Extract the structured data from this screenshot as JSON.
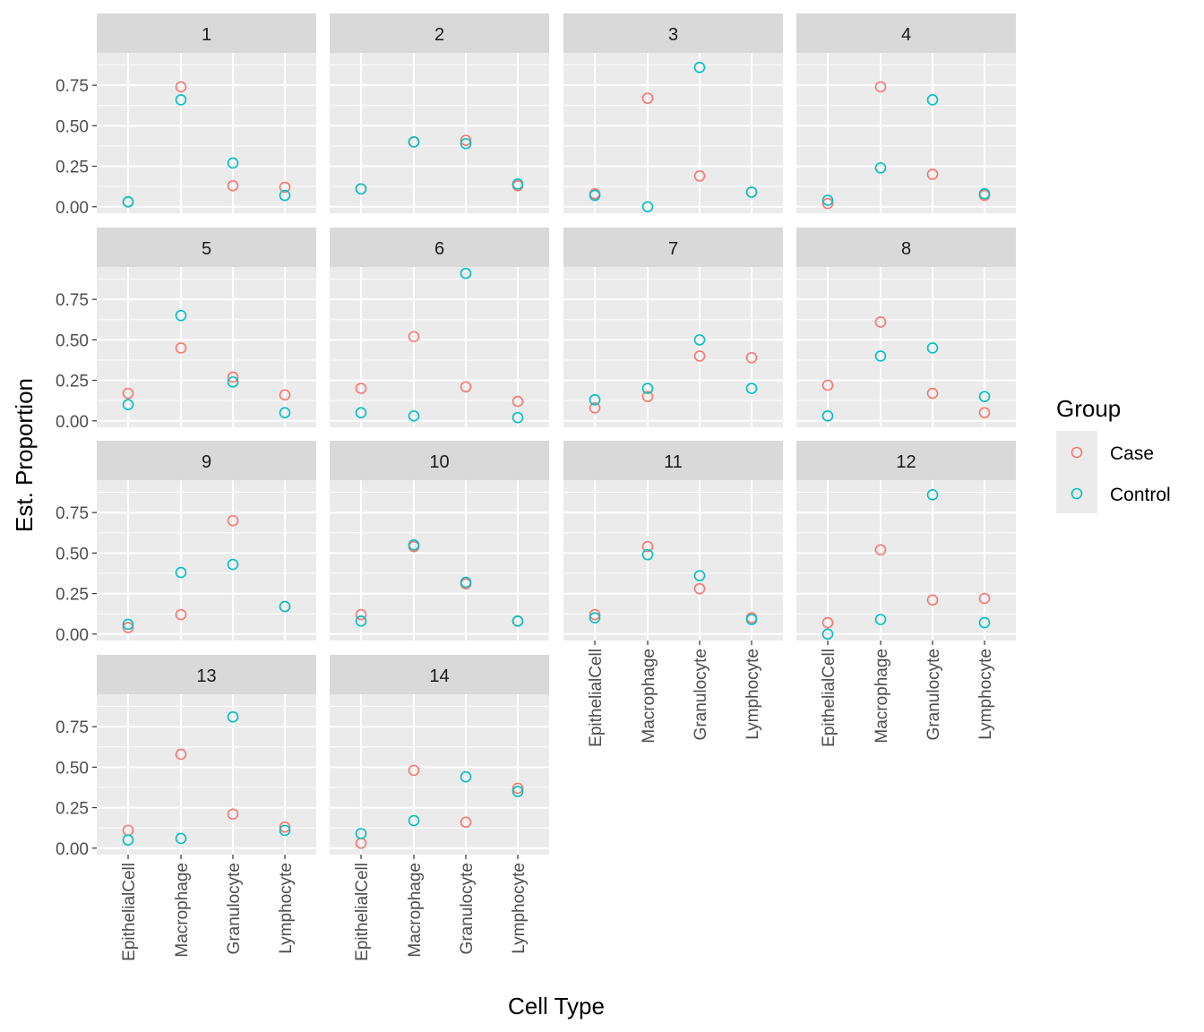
{
  "chart_data": {
    "type": "scatter",
    "facet_layout": "4 columns, 4 rows",
    "xlabel": "Cell Type",
    "ylabel": "Est. Proportion",
    "categories": [
      "EpithelialCell",
      "Macrophage",
      "Granulocyte",
      "Lymphocyte"
    ],
    "y_ticks": [
      "0.00",
      "0.25",
      "0.50",
      "0.75"
    ],
    "ylim": [
      -0.04,
      0.95
    ],
    "legend": {
      "title": "Group",
      "position": "right",
      "items": [
        {
          "label": "Case",
          "color": "#F8766D"
        },
        {
          "label": "Control",
          "color": "#00BFC4"
        }
      ]
    },
    "panels": [
      {
        "label": "1",
        "series": [
          {
            "name": "Case",
            "values": [
              0.03,
              0.74,
              0.13,
              0.12
            ]
          },
          {
            "name": "Control",
            "values": [
              0.03,
              0.66,
              0.27,
              0.07
            ]
          }
        ]
      },
      {
        "label": "2",
        "series": [
          {
            "name": "Case",
            "values": [
              0.11,
              0.4,
              0.41,
              0.13
            ]
          },
          {
            "name": "Control",
            "values": [
              0.11,
              0.4,
              0.39,
              0.14
            ]
          }
        ]
      },
      {
        "label": "3",
        "series": [
          {
            "name": "Case",
            "values": [
              0.08,
              0.67,
              0.19,
              0.09
            ]
          },
          {
            "name": "Control",
            "values": [
              0.07,
              0.0,
              0.86,
              0.09
            ]
          }
        ]
      },
      {
        "label": "4",
        "series": [
          {
            "name": "Case",
            "values": [
              0.02,
              0.74,
              0.2,
              0.07
            ]
          },
          {
            "name": "Control",
            "values": [
              0.04,
              0.24,
              0.66,
              0.08
            ]
          }
        ]
      },
      {
        "label": "5",
        "series": [
          {
            "name": "Case",
            "values": [
              0.17,
              0.45,
              0.27,
              0.16
            ]
          },
          {
            "name": "Control",
            "values": [
              0.1,
              0.65,
              0.24,
              0.05
            ]
          }
        ]
      },
      {
        "label": "6",
        "series": [
          {
            "name": "Case",
            "values": [
              0.2,
              0.52,
              0.21,
              0.12
            ]
          },
          {
            "name": "Control",
            "values": [
              0.05,
              0.03,
              0.91,
              0.02
            ]
          }
        ]
      },
      {
        "label": "7",
        "series": [
          {
            "name": "Case",
            "values": [
              0.08,
              0.15,
              0.4,
              0.39
            ]
          },
          {
            "name": "Control",
            "values": [
              0.13,
              0.2,
              0.5,
              0.2
            ]
          }
        ]
      },
      {
        "label": "8",
        "series": [
          {
            "name": "Case",
            "values": [
              0.22,
              0.61,
              0.17,
              0.05
            ]
          },
          {
            "name": "Control",
            "values": [
              0.03,
              0.4,
              0.45,
              0.15
            ]
          }
        ]
      },
      {
        "label": "9",
        "series": [
          {
            "name": "Case",
            "values": [
              0.04,
              0.12,
              0.7,
              0.17
            ]
          },
          {
            "name": "Control",
            "values": [
              0.06,
              0.38,
              0.43,
              0.17
            ]
          }
        ]
      },
      {
        "label": "10",
        "series": [
          {
            "name": "Case",
            "values": [
              0.12,
              0.54,
              0.31,
              0.08
            ]
          },
          {
            "name": "Control",
            "values": [
              0.08,
              0.55,
              0.32,
              0.08
            ]
          }
        ]
      },
      {
        "label": "11",
        "series": [
          {
            "name": "Case",
            "values": [
              0.12,
              0.54,
              0.28,
              0.1
            ]
          },
          {
            "name": "Control",
            "values": [
              0.1,
              0.49,
              0.36,
              0.09
            ]
          }
        ]
      },
      {
        "label": "12",
        "series": [
          {
            "name": "Case",
            "values": [
              0.07,
              0.52,
              0.21,
              0.22
            ]
          },
          {
            "name": "Control",
            "values": [
              0.0,
              0.09,
              0.86,
              0.07
            ]
          }
        ]
      },
      {
        "label": "13",
        "series": [
          {
            "name": "Case",
            "values": [
              0.11,
              0.58,
              0.21,
              0.13
            ]
          },
          {
            "name": "Control",
            "values": [
              0.05,
              0.06,
              0.81,
              0.11
            ]
          }
        ]
      },
      {
        "label": "14",
        "series": [
          {
            "name": "Case",
            "values": [
              0.03,
              0.48,
              0.16,
              0.37
            ]
          },
          {
            "name": "Control",
            "values": [
              0.09,
              0.17,
              0.44,
              0.35
            ]
          }
        ]
      }
    ]
  }
}
